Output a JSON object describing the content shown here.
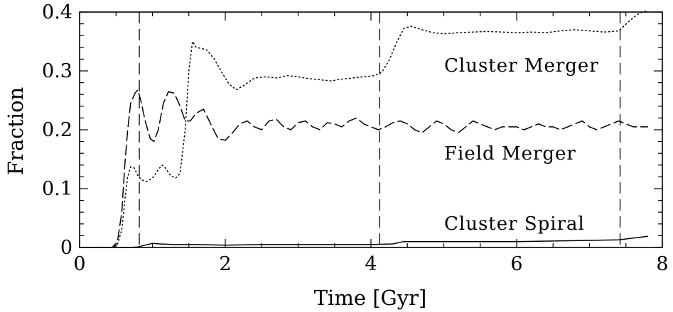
{
  "chart_data": {
    "type": "line",
    "xlabel": "Time [Gyr]",
    "ylabel": "Fraction",
    "xlim": [
      0,
      8
    ],
    "ylim": [
      0,
      0.4
    ],
    "x_ticks": [
      "0",
      "2",
      "4",
      "6",
      "8"
    ],
    "y_ticks": [
      "0",
      "0.1",
      "0.2",
      "0.3",
      "0.4"
    ],
    "grid": false,
    "legend": "none",
    "series": [
      {
        "name": "Cluster Merger",
        "style": "dotted",
        "x": [
          0,
          0.45,
          0.52,
          0.58,
          0.62,
          0.66,
          0.7,
          0.75,
          0.8,
          0.85,
          0.92,
          1.0,
          1.08,
          1.13,
          1.18,
          1.25,
          1.32,
          1.38,
          1.45,
          1.5,
          1.55,
          1.6,
          1.68,
          1.75,
          1.85,
          1.95,
          2.05,
          2.15,
          2.25,
          2.4,
          2.55,
          2.7,
          2.85,
          3.0,
          3.15,
          3.3,
          3.45,
          3.6,
          3.75,
          3.9,
          4.05,
          4.15,
          4.25,
          4.35,
          4.45,
          4.55,
          4.7,
          4.85,
          5.0,
          5.2,
          5.4,
          5.6,
          5.8,
          6.0,
          6.2,
          6.4,
          6.6,
          6.8,
          7.0,
          7.2,
          7.4,
          7.55,
          7.65,
          7.72,
          7.8
        ],
        "y": [
          0,
          0.0,
          0.005,
          0.03,
          0.08,
          0.12,
          0.137,
          0.135,
          0.122,
          0.115,
          0.112,
          0.118,
          0.132,
          0.14,
          0.135,
          0.122,
          0.118,
          0.126,
          0.2,
          0.3,
          0.35,
          0.34,
          0.338,
          0.335,
          0.32,
          0.298,
          0.278,
          0.268,
          0.275,
          0.288,
          0.29,
          0.288,
          0.292,
          0.29,
          0.287,
          0.285,
          0.283,
          0.286,
          0.288,
          0.29,
          0.292,
          0.298,
          0.318,
          0.348,
          0.372,
          0.376,
          0.37,
          0.365,
          0.363,
          0.365,
          0.366,
          0.367,
          0.366,
          0.365,
          0.366,
          0.365,
          0.368,
          0.37,
          0.368,
          0.366,
          0.368,
          0.385,
          0.395,
          0.4,
          0.402
        ]
      },
      {
        "name": "Field Merger",
        "style": "dashed",
        "x": [
          0,
          0.45,
          0.52,
          0.58,
          0.62,
          0.66,
          0.7,
          0.76,
          0.8,
          0.84,
          0.9,
          0.97,
          1.02,
          1.08,
          1.15,
          1.22,
          1.3,
          1.38,
          1.45,
          1.52,
          1.6,
          1.7,
          1.8,
          1.9,
          2.0,
          2.1,
          2.2,
          2.3,
          2.4,
          2.5,
          2.6,
          2.7,
          2.8,
          2.9,
          3.0,
          3.1,
          3.2,
          3.3,
          3.4,
          3.5,
          3.6,
          3.7,
          3.8,
          3.9,
          4.0,
          4.1,
          4.2,
          4.3,
          4.4,
          4.5,
          4.6,
          4.7,
          4.8,
          4.9,
          5.0,
          5.1,
          5.2,
          5.3,
          5.4,
          5.5,
          5.6,
          5.7,
          5.8,
          5.9,
          6.0,
          6.1,
          6.2,
          6.3,
          6.4,
          6.5,
          6.6,
          6.7,
          6.8,
          6.9,
          7.0,
          7.1,
          7.2,
          7.3,
          7.4,
          7.5,
          7.6,
          7.7,
          7.8
        ],
        "y": [
          0,
          0.0,
          0.01,
          0.06,
          0.14,
          0.2,
          0.245,
          0.262,
          0.268,
          0.25,
          0.215,
          0.185,
          0.18,
          0.2,
          0.245,
          0.265,
          0.262,
          0.24,
          0.215,
          0.215,
          0.228,
          0.235,
          0.21,
          0.185,
          0.182,
          0.195,
          0.21,
          0.215,
          0.205,
          0.2,
          0.215,
          0.218,
          0.205,
          0.2,
          0.212,
          0.215,
          0.205,
          0.2,
          0.212,
          0.21,
          0.205,
          0.215,
          0.22,
          0.21,
          0.205,
          0.2,
          0.205,
          0.212,
          0.215,
          0.21,
          0.2,
          0.195,
          0.205,
          0.215,
          0.21,
          0.2,
          0.195,
          0.205,
          0.215,
          0.21,
          0.205,
          0.2,
          0.205,
          0.205,
          0.205,
          0.2,
          0.205,
          0.21,
          0.205,
          0.205,
          0.2,
          0.205,
          0.21,
          0.215,
          0.205,
          0.2,
          0.205,
          0.21,
          0.215,
          0.21,
          0.205,
          0.205,
          0.205
        ]
      },
      {
        "name": "Cluster Spiral",
        "style": "solid",
        "x": [
          0,
          0.7,
          0.8,
          0.9,
          1.0,
          1.1,
          1.3,
          1.6,
          2.0,
          2.5,
          3.0,
          3.5,
          4.0,
          4.3,
          4.45,
          4.6,
          5.0,
          5.5,
          6.0,
          6.5,
          7.0,
          7.4,
          7.6,
          7.8
        ],
        "y": [
          0,
          0.0,
          0.001,
          0.004,
          0.007,
          0.006,
          0.005,
          0.005,
          0.004,
          0.005,
          0.005,
          0.005,
          0.005,
          0.006,
          0.01,
          0.01,
          0.01,
          0.01,
          0.01,
          0.011,
          0.012,
          0.013,
          0.016,
          0.019
        ]
      }
    ],
    "vertical_lines": [
      0.82,
      4.12,
      7.42
    ],
    "annotations": [
      "Cluster Merger",
      "Field Merger",
      "Cluster Spiral"
    ]
  }
}
